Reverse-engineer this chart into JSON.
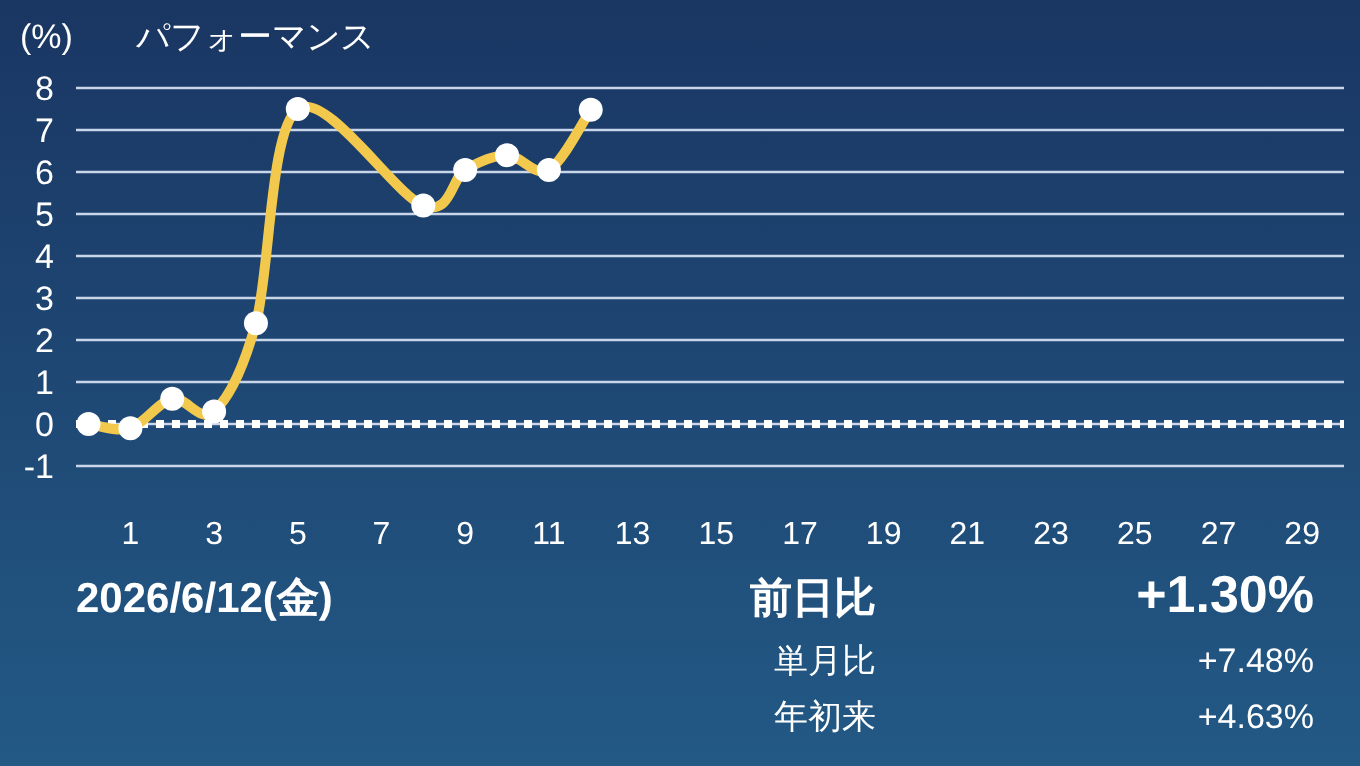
{
  "chart_data": {
    "type": "line",
    "title": "パフォーマンス",
    "ylabel": "(%)",
    "x": [
      0,
      1,
      2,
      3,
      4,
      5,
      8,
      9,
      10,
      11,
      12
    ],
    "series": [
      {
        "color": "#f2c94c",
        "values": [
          0,
          -0.1,
          0.6,
          0.3,
          2.4,
          7.5,
          5.2,
          6.05,
          6.4,
          6.05,
          7.48
        ]
      }
    ],
    "xlim": [
      -0.3,
      30
    ],
    "xticks": [
      1,
      3,
      5,
      7,
      9,
      11,
      13,
      15,
      17,
      19,
      21,
      23,
      25,
      27,
      29
    ],
    "ylim": [
      -1,
      8
    ],
    "yticks": [
      -1,
      0,
      1,
      2,
      3,
      4,
      5,
      6,
      7,
      8
    ],
    "grid": "y",
    "marker": "circle",
    "line_style": "solid",
    "ref_lines": [
      {
        "axis": "y",
        "value": 0,
        "label": null,
        "color": "#ffffff",
        "line_style": "dotted"
      }
    ],
    "annotations": [
      "2026/6/12(金)",
      "前日比",
      "+1.30%",
      "単月比",
      "+7.48%",
      "年初来",
      "+4.63%"
    ]
  }
}
